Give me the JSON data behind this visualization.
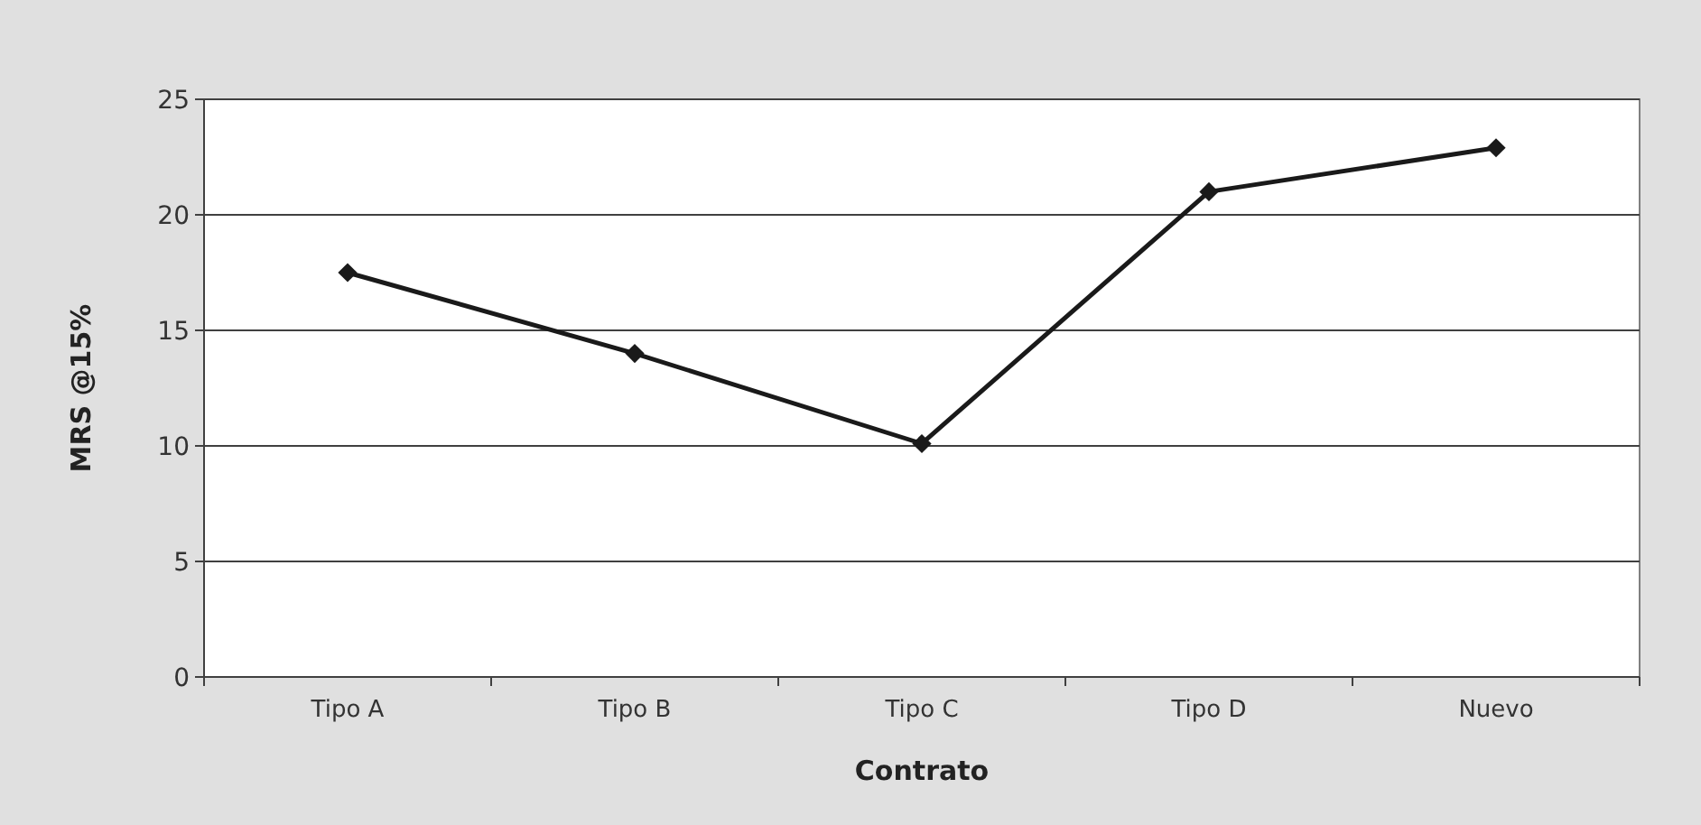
{
  "chart_data": {
    "type": "line",
    "xlabel": "Contrato",
    "ylabel": "MRS @15%",
    "categories": [
      "Tipo A",
      "Tipo B",
      "Tipo C",
      "Tipo D",
      "Nuevo"
    ],
    "series": [
      {
        "color": "#1a1a1a",
        "values": [
          17.5,
          14.0,
          10.1,
          21.0,
          22.9
        ]
      }
    ],
    "ylim": [
      0,
      25
    ],
    "yticks": [
      0,
      5,
      10,
      15,
      20,
      25
    ],
    "grid": "y",
    "marker": "diamond",
    "line_style": "solid"
  }
}
